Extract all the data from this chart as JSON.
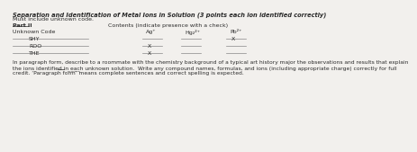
{
  "title": "Separation and Identification of Metal Ions in Solution (3 points each ion identified correctly)",
  "subtitle": "Must include unknown code.",
  "part_label": "Part II",
  "contents_label": "Contents (indicate presence with a check)",
  "unknown_code_label": "Unknown Code",
  "col_headers": [
    "Ag⁺",
    "Hg₂²⁺",
    "Pb²⁺"
  ],
  "rows": [
    {
      "code": "SHY",
      "checks": [
        "",
        "",
        "X"
      ]
    },
    {
      "code": "ROO",
      "checks": [
        "X",
        "",
        ""
      ]
    },
    {
      "code": "THE",
      "checks": [
        "X",
        "",
        ""
      ]
    }
  ],
  "paragraph_lines": [
    "In paragraph form, describe to a roommate with the chemistry background of a typical art history major the observations and results that explain",
    "the ions identified in ̲e̲a̲c̲h unknown solution.  Write any compound names, formulas, and ions (including appropriate charge) correctly for full",
    "credit. ‘Paragraph form’ means complete sentences and correct spelling is expected."
  ],
  "each_underline": true,
  "bg_color": "#f2f0ed",
  "text_color": "#2a2a2a",
  "line_color": "#888888",
  "title_fontsize": 4.8,
  "body_fontsize": 4.5,
  "para_fontsize": 4.3
}
